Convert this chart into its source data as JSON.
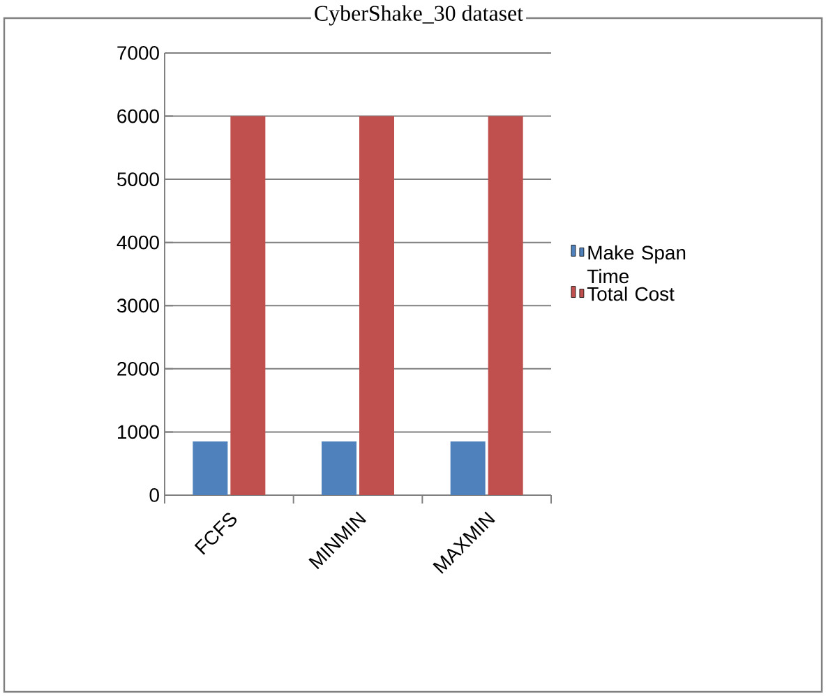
{
  "chart_data": {
    "type": "bar",
    "title": "CyberShake_30 dataset",
    "categories": [
      "FCFS",
      "MINMIN",
      "MAXMIN"
    ],
    "series": [
      {
        "name": "Make Span Time",
        "color": "#4f81bd",
        "values": [
          850,
          850,
          850
        ]
      },
      {
        "name": "Total Cost",
        "color": "#c0504d",
        "values": [
          6000,
          6000,
          6000
        ]
      }
    ],
    "ylim": [
      0,
      7000
    ],
    "yticks": [
      0,
      1000,
      2000,
      3000,
      4000,
      5000,
      6000,
      7000
    ],
    "grid": "y",
    "legend": "right"
  }
}
